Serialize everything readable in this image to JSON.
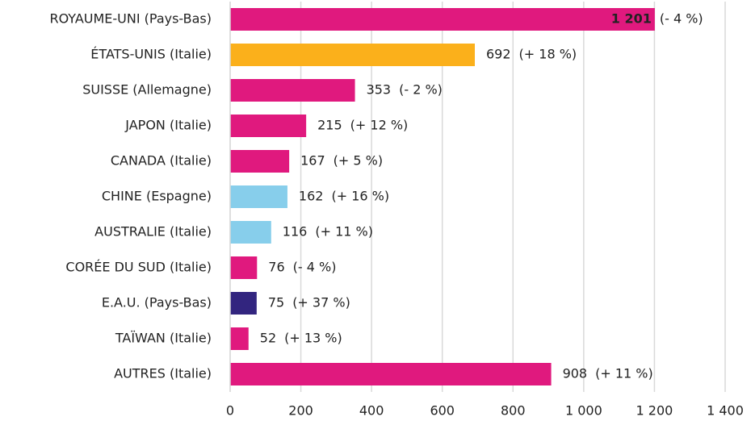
{
  "chart_data": {
    "type": "bar",
    "orientation": "horizontal",
    "categories": [
      "ROYAUME-UNI (Pays-Bas)",
      "ÉTATS-UNIS (Italie)",
      "SUISSE (Allemagne)",
      "JAPON (Italie)",
      "CANADA (Italie)",
      "CHINE (Espagne)",
      "AUSTRALIE (Italie)",
      "CORÉE DU SUD (Italie)",
      "E.A.U. (Pays-Bas)",
      "TAÏWAN (Italie)",
      "AUTRES (Italie)"
    ],
    "values": [
      1201,
      692,
      353,
      215,
      167,
      162,
      116,
      76,
      75,
      52,
      908
    ],
    "value_labels": [
      "1 201",
      "692",
      "353",
      "215",
      "167",
      "162",
      "116",
      "76",
      "75",
      "52",
      "908"
    ],
    "changes": [
      "(- 4 %)",
      "(+ 18 %)",
      "(- 2 %)",
      "(+ 12 %)",
      "(+ 5 %)",
      "(+ 16 %)",
      "(+ 11 %)",
      "(- 4 %)",
      "(+ 37 %)",
      "(+ 13 %)",
      "(+ 11 %)"
    ],
    "colors": [
      "#e0197e",
      "#fbb01b",
      "#e0197e",
      "#e0197e",
      "#e0197e",
      "#87ceeb",
      "#87ceeb",
      "#e0197e",
      "#32257f",
      "#e0197e",
      "#e0197e"
    ],
    "xlim": [
      0,
      1400
    ],
    "xticks": [
      0,
      200,
      400,
      600,
      800,
      {
        "value": 1000,
        "label": "1 000"
      },
      {
        "value": 1200,
        "label": "1 200"
      },
      {
        "value": 1400,
        "label": "1 400"
      }
    ],
    "grid": true
  }
}
